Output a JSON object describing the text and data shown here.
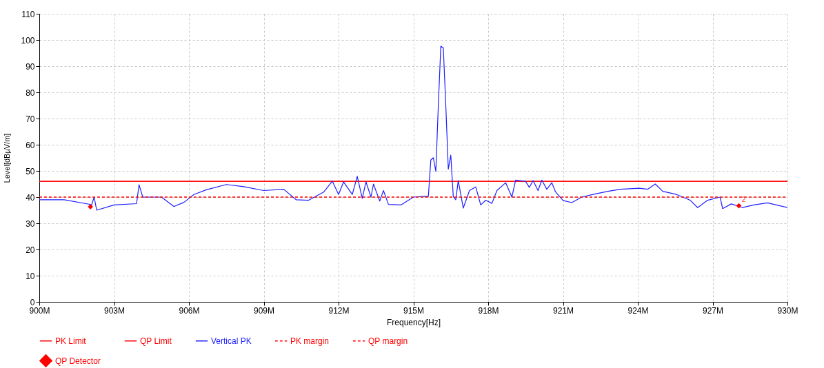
{
  "chart_data": {
    "type": "line",
    "xlabel": "Frequency[Hz]",
    "ylabel": "Level[dBµV/m]",
    "xlim": [
      900,
      930
    ],
    "ylim": [
      0,
      110
    ],
    "xticks": [
      {
        "value": 900,
        "label": "900M"
      },
      {
        "value": 903,
        "label": "903M"
      },
      {
        "value": 906,
        "label": "906M"
      },
      {
        "value": 909,
        "label": "909M"
      },
      {
        "value": 912,
        "label": "912M"
      },
      {
        "value": 915,
        "label": "915M"
      },
      {
        "value": 918,
        "label": "918M"
      },
      {
        "value": 921,
        "label": "921M"
      },
      {
        "value": 924,
        "label": "924M"
      },
      {
        "value": 927,
        "label": "927M"
      },
      {
        "value": 930,
        "label": "930M"
      }
    ],
    "yticks": [
      0,
      10,
      20,
      30,
      40,
      50,
      60,
      70,
      80,
      90,
      100,
      110
    ],
    "grid": true,
    "legend": "bottom",
    "series": [
      {
        "name": "PK Limit",
        "type": "line",
        "color": "#ff0000",
        "line_style": "solid",
        "x": [
          900,
          930
        ],
        "values": [
          46,
          46
        ]
      },
      {
        "name": "QP Limit",
        "type": "line",
        "color": "#ff0000",
        "line_style": "solid",
        "x": [
          900,
          930
        ],
        "values": [
          46,
          46
        ]
      },
      {
        "name": "Vertical PK",
        "type": "line",
        "color": "#1f1fff",
        "line_style": "solid",
        "x": [
          900,
          901,
          902.1,
          902.2,
          902.3,
          903,
          903.9,
          904,
          904.15,
          904.9,
          905.4,
          905.8,
          906.2,
          906.7,
          907.5,
          908.2,
          909,
          909.8,
          910.3,
          910.8,
          911.4,
          911.75,
          912,
          912.2,
          912.55,
          912.75,
          912.95,
          913.1,
          913.3,
          913.4,
          913.65,
          913.8,
          914,
          914.5,
          915,
          915.5,
          915.6,
          915.7,
          915.8,
          915.9,
          916,
          916.1,
          916.2,
          916.3,
          916.4,
          916.5,
          916.6,
          916.7,
          916.8,
          917,
          917.25,
          917.5,
          917.7,
          917.9,
          918.15,
          918.35,
          918.7,
          918.95,
          919.1,
          919.5,
          919.65,
          919.8,
          920,
          920.15,
          920.35,
          920.55,
          920.7,
          921,
          921.35,
          921.75,
          922.2,
          922.8,
          923.3,
          924.05,
          924.4,
          924.7,
          925,
          925.55,
          926.1,
          926.4,
          926.8,
          927.3,
          927.4,
          927.75,
          928.2,
          928.65,
          929.2,
          930
        ],
        "values": [
          39,
          39,
          37.1,
          40,
          35,
          37,
          37.5,
          44.7,
          40,
          40,
          36.4,
          38,
          41,
          42.8,
          44.8,
          44,
          42.5,
          43,
          39,
          38.8,
          41.9,
          46.1,
          41,
          45.8,
          41,
          47.9,
          39.5,
          45.8,
          40,
          45,
          38.5,
          42.5,
          37.2,
          37,
          40,
          40.3,
          40.2,
          54.2,
          55,
          49.8,
          75,
          97.6,
          97,
          75,
          50.7,
          56,
          40.2,
          39,
          46.3,
          35.8,
          42.5,
          43.9,
          37,
          38.8,
          37.6,
          42.5,
          45.5,
          40,
          46.5,
          46,
          43.7,
          46.3,
          42.5,
          46.5,
          43,
          45.5,
          42,
          38.7,
          37.9,
          40,
          41,
          42.2,
          43,
          43.4,
          43,
          45,
          42.2,
          41,
          38.8,
          36,
          38.8,
          40,
          35.6,
          37.4,
          36,
          37,
          37.8,
          36
        ]
      },
      {
        "name": "PK margin",
        "type": "line",
        "color": "#ff0000",
        "line_style": "dashed",
        "x": [
          900,
          930
        ],
        "values": [
          40,
          40
        ]
      },
      {
        "name": "QP margin",
        "type": "line",
        "color": "#ff0000",
        "line_style": "dashed",
        "x": [
          900,
          930
        ],
        "values": [
          40,
          40
        ]
      },
      {
        "name": "QP Detector",
        "type": "scatter",
        "color": "#ff0000",
        "marker": "diamond",
        "x": [
          902.05,
          928.05
        ],
        "values": [
          36.3,
          36.7
        ]
      }
    ],
    "annotations": [
      {
        "text": "2",
        "x": 928.05,
        "y": 36.7
      }
    ]
  }
}
